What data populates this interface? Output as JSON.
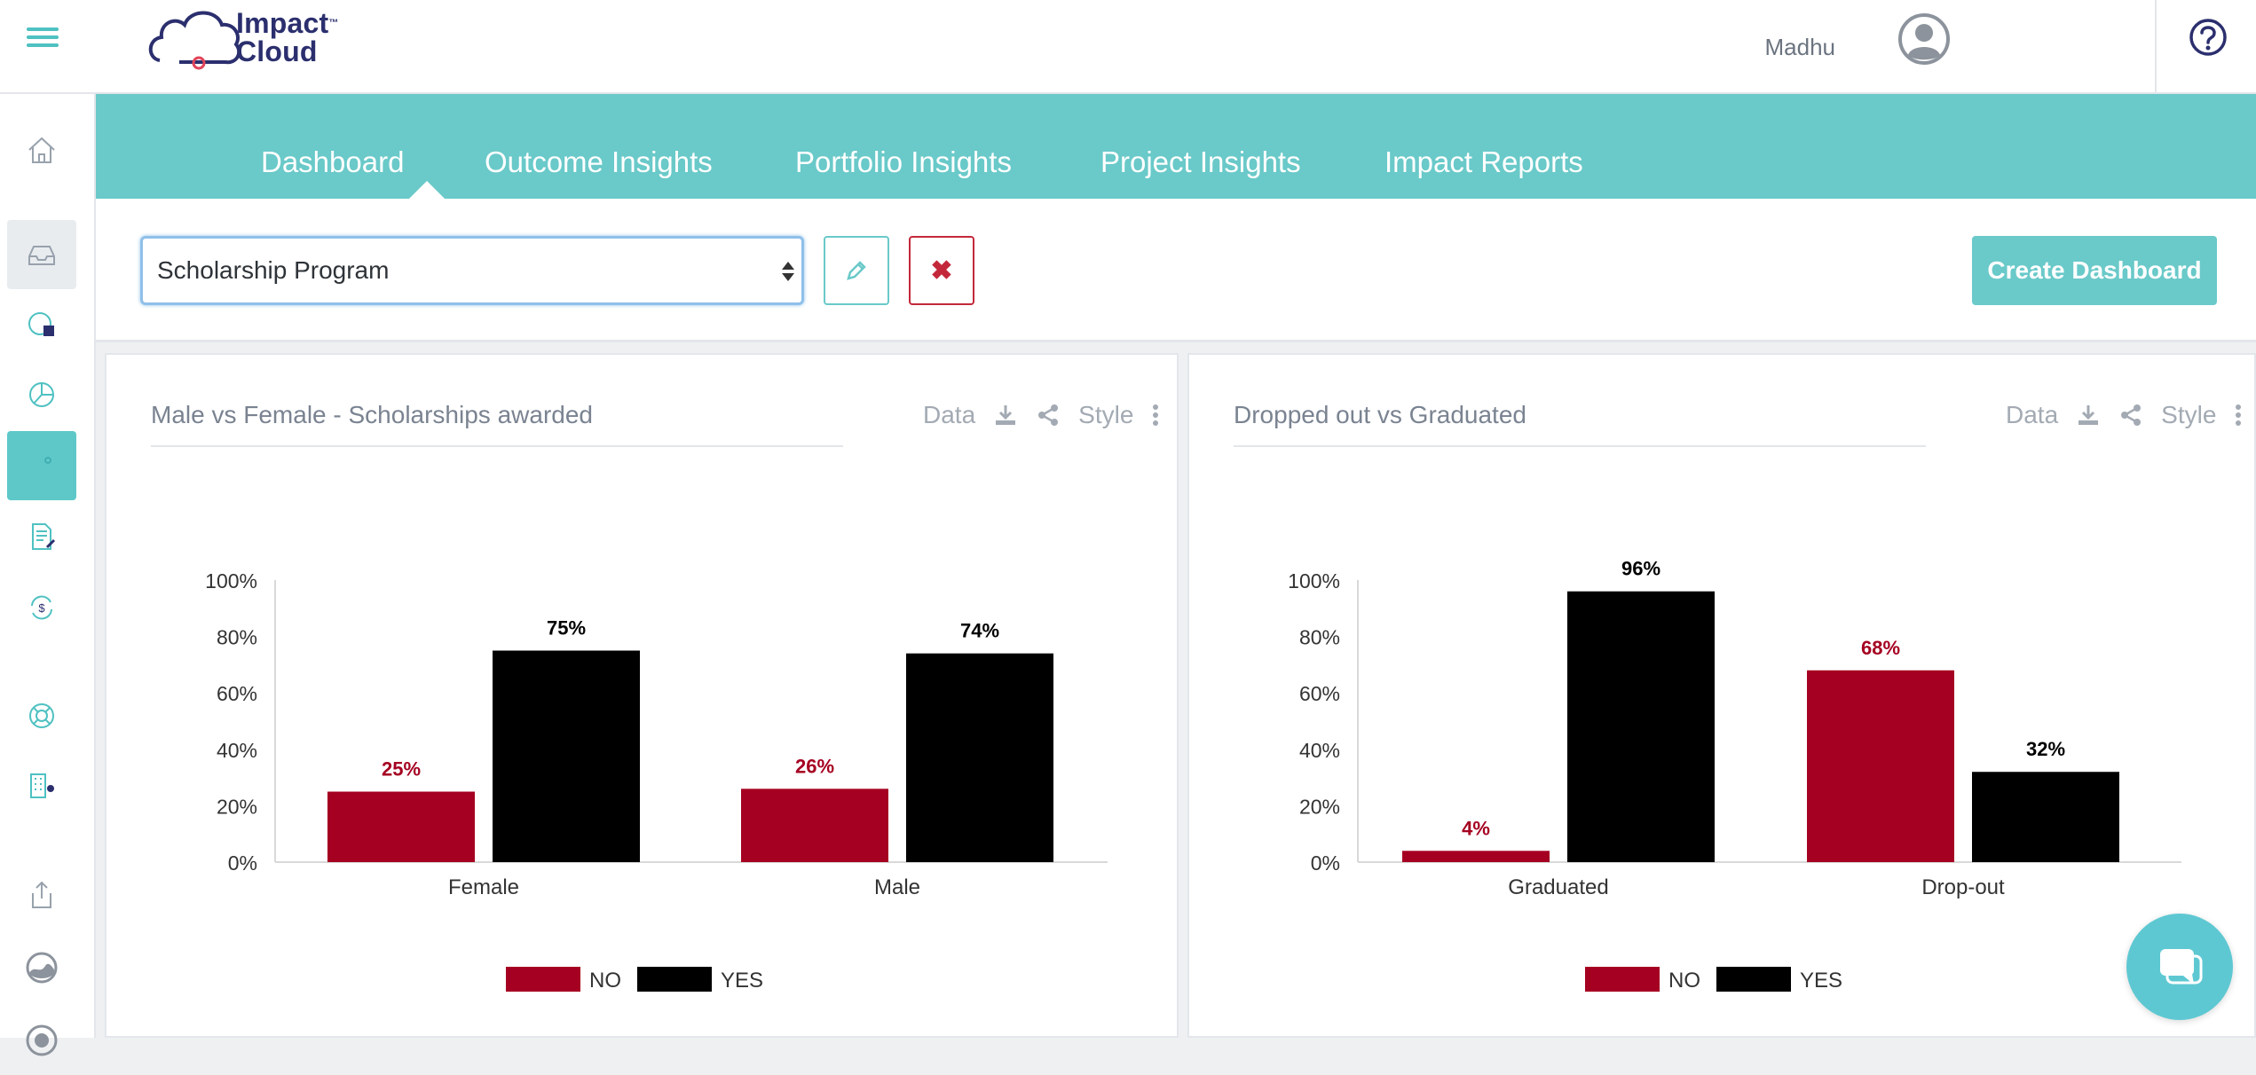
{
  "header": {
    "logo_line1": "Impact",
    "logo_tm": "™",
    "logo_line2": "Cloud",
    "username": "Madhu"
  },
  "colors": {
    "accent": "#6ac9c9",
    "no_series": "#a50021",
    "yes_series": "#000000",
    "danger": "#c3283a"
  },
  "sidebar": {
    "items": [
      {
        "icon": "home-icon"
      },
      {
        "icon": "inbox-icon"
      },
      {
        "icon": "report-chart-icon"
      },
      {
        "icon": "pie-chart-icon"
      },
      {
        "icon": "dashboard-icon"
      },
      {
        "icon": "document-edit-icon"
      },
      {
        "icon": "dollar-cycle-icon"
      },
      {
        "icon": "lifebuoy-icon"
      },
      {
        "icon": "building-icon"
      },
      {
        "icon": "export-icon"
      },
      {
        "icon": "globe-icon"
      },
      {
        "icon": "user-circle-icon"
      }
    ]
  },
  "nav": {
    "tabs": [
      "Dashboard",
      "Outcome Insights",
      "Portfolio Insights",
      "Project Insights",
      "Impact Reports"
    ],
    "active": "Dashboard"
  },
  "toolbar": {
    "selected_dashboard": "Scholarship Program",
    "delete_symbol": "✖",
    "create_label": "Create Dashboard"
  },
  "panel_tools": {
    "data_label": "Data",
    "style_label": "Style"
  },
  "chart_data": [
    {
      "type": "bar",
      "title": "Male vs Female - Scholarships awarded",
      "categories": [
        "Female",
        "Male"
      ],
      "series": [
        {
          "name": "NO",
          "values": [
            25,
            26
          ],
          "labels": [
            "25%",
            "26%"
          ]
        },
        {
          "name": "YES",
          "values": [
            75,
            74
          ],
          "labels": [
            "75%",
            "74%"
          ]
        }
      ],
      "ylim": [
        0,
        100
      ],
      "yticks": [
        "0%",
        "20%",
        "40%",
        "60%",
        "80%",
        "100%"
      ],
      "legend": "bottom"
    },
    {
      "type": "bar",
      "title": "Dropped out vs Graduated",
      "categories": [
        "Graduated",
        "Drop-out"
      ],
      "series": [
        {
          "name": "NO",
          "values": [
            4,
            68
          ],
          "labels": [
            "4%",
            "68%"
          ]
        },
        {
          "name": "YES",
          "values": [
            96,
            32
          ],
          "labels": [
            "96%",
            "32%"
          ]
        }
      ],
      "ylim": [
        0,
        100
      ],
      "yticks": [
        "0%",
        "20%",
        "40%",
        "60%",
        "80%",
        "100%"
      ],
      "legend": "bottom"
    }
  ]
}
